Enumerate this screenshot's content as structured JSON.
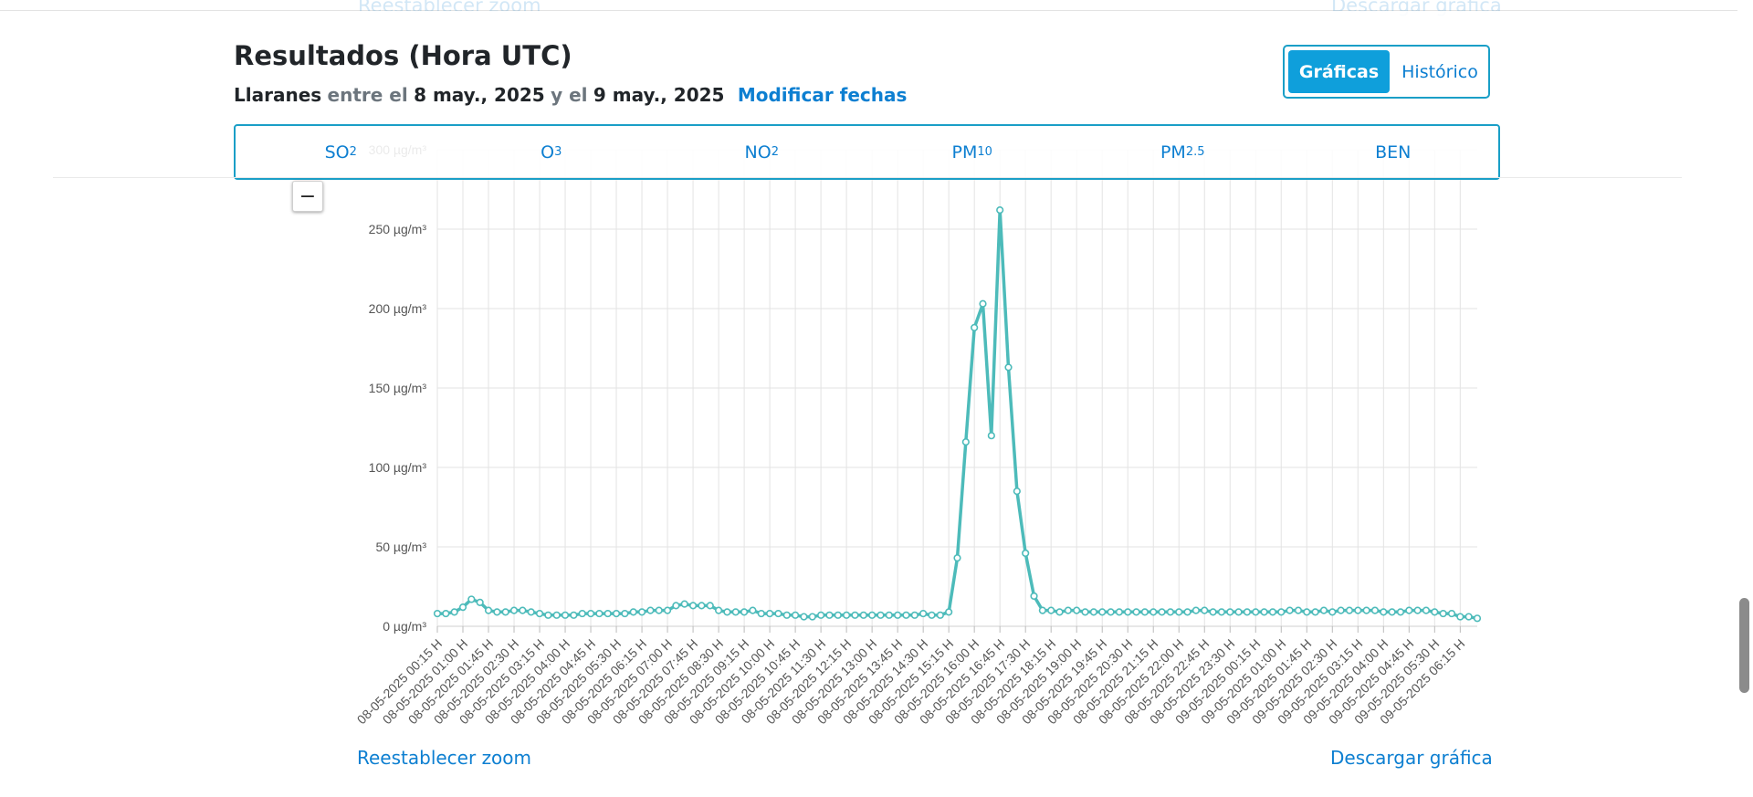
{
  "ghost": {
    "reset_zoom": "Reestablecer zoom",
    "download": "Descargar gráfica"
  },
  "header": {
    "title": "Resultados (Hora UTC)",
    "station": "Llaranes",
    "between": "entre el",
    "start_date": "8 may., 2025",
    "and": "y el",
    "end_date": "9 may., 2025",
    "modify_dates": "Modificar fechas"
  },
  "view_toggle": {
    "charts": "Gráficas",
    "history": "Histórico"
  },
  "tabs": [
    {
      "base": "SO",
      "sub": "2"
    },
    {
      "base": "O",
      "sub": "3"
    },
    {
      "base": "NO",
      "sub": "2"
    },
    {
      "base": "PM",
      "sub": "10"
    },
    {
      "base": "PM",
      "sub": "2.5"
    },
    {
      "base": "BEN",
      "sub": ""
    }
  ],
  "zoom": {
    "minus": "−"
  },
  "footer": {
    "reset_zoom": "Reestablecer zoom",
    "download_chart": "Descargar gráfica"
  },
  "chart_data": {
    "type": "line",
    "ylim": [
      0,
      300
    ],
    "y_unit": "µg/m³",
    "y_ticks": [
      0,
      50,
      100,
      150,
      200,
      250,
      300
    ],
    "line_color": "#4dbbba",
    "grid": true,
    "x_tick_labels": [
      "08-05-2025 00:15 H",
      "08-05-2025 01:00 H",
      "08-05-2025 01:45 H",
      "08-05-2025 02:30 H",
      "08-05-2025 03:15 H",
      "08-05-2025 04:00 H",
      "08-05-2025 04:45 H",
      "08-05-2025 05:30 H",
      "08-05-2025 06:15 H",
      "08-05-2025 07:00 H",
      "08-05-2025 07:45 H",
      "08-05-2025 08:30 H",
      "08-05-2025 09:15 H",
      "08-05-2025 10:00 H",
      "08-05-2025 10:45 H",
      "08-05-2025 11:30 H",
      "08-05-2025 12:15 H",
      "08-05-2025 13:00 H",
      "08-05-2025 13:45 H",
      "08-05-2025 14:30 H",
      "08-05-2025 15:15 H",
      "08-05-2025 16:00 H",
      "08-05-2025 16:45 H",
      "08-05-2025 17:30 H",
      "08-05-2025 18:15 H",
      "08-05-2025 19:00 H",
      "08-05-2025 19:45 H",
      "08-05-2025 20:30 H",
      "08-05-2025 21:15 H",
      "08-05-2025 22:00 H",
      "08-05-2025 22:45 H",
      "08-05-2025 23:30 H",
      "09-05-2025 00:15 H",
      "09-05-2025 01:00 H",
      "09-05-2025 01:45 H",
      "09-05-2025 02:30 H",
      "09-05-2025 03:15 H",
      "09-05-2025 04:00 H",
      "09-05-2025 04:45 H",
      "09-05-2025 05:30 H",
      "09-05-2025 06:15 H"
    ],
    "values": [
      8,
      8,
      9,
      12,
      17,
      15,
      10,
      9,
      9,
      10,
      10,
      9,
      8,
      7,
      7,
      7,
      7,
      8,
      8,
      8,
      8,
      8,
      8,
      9,
      9,
      10,
      10,
      10,
      13,
      14,
      13,
      13,
      13,
      10,
      9,
      9,
      9,
      10,
      8,
      8,
      8,
      7,
      7,
      6,
      6,
      7,
      7,
      7,
      7,
      7,
      7,
      7,
      7,
      7,
      7,
      7,
      7,
      8,
      7,
      7,
      9,
      43,
      116,
      188,
      203,
      120,
      262,
      163,
      85,
      46,
      19,
      10,
      10,
      9,
      10,
      10,
      9,
      9,
      9,
      9,
      9,
      9,
      9,
      9,
      9,
      9,
      9,
      9,
      9,
      10,
      10,
      9,
      9,
      9,
      9,
      9,
      9,
      9,
      9,
      9,
      10,
      10,
      9,
      9,
      10,
      9,
      10,
      10,
      10,
      10,
      10,
      9,
      9,
      9,
      10,
      10,
      10,
      9,
      8,
      8,
      6,
      6,
      5
    ]
  }
}
